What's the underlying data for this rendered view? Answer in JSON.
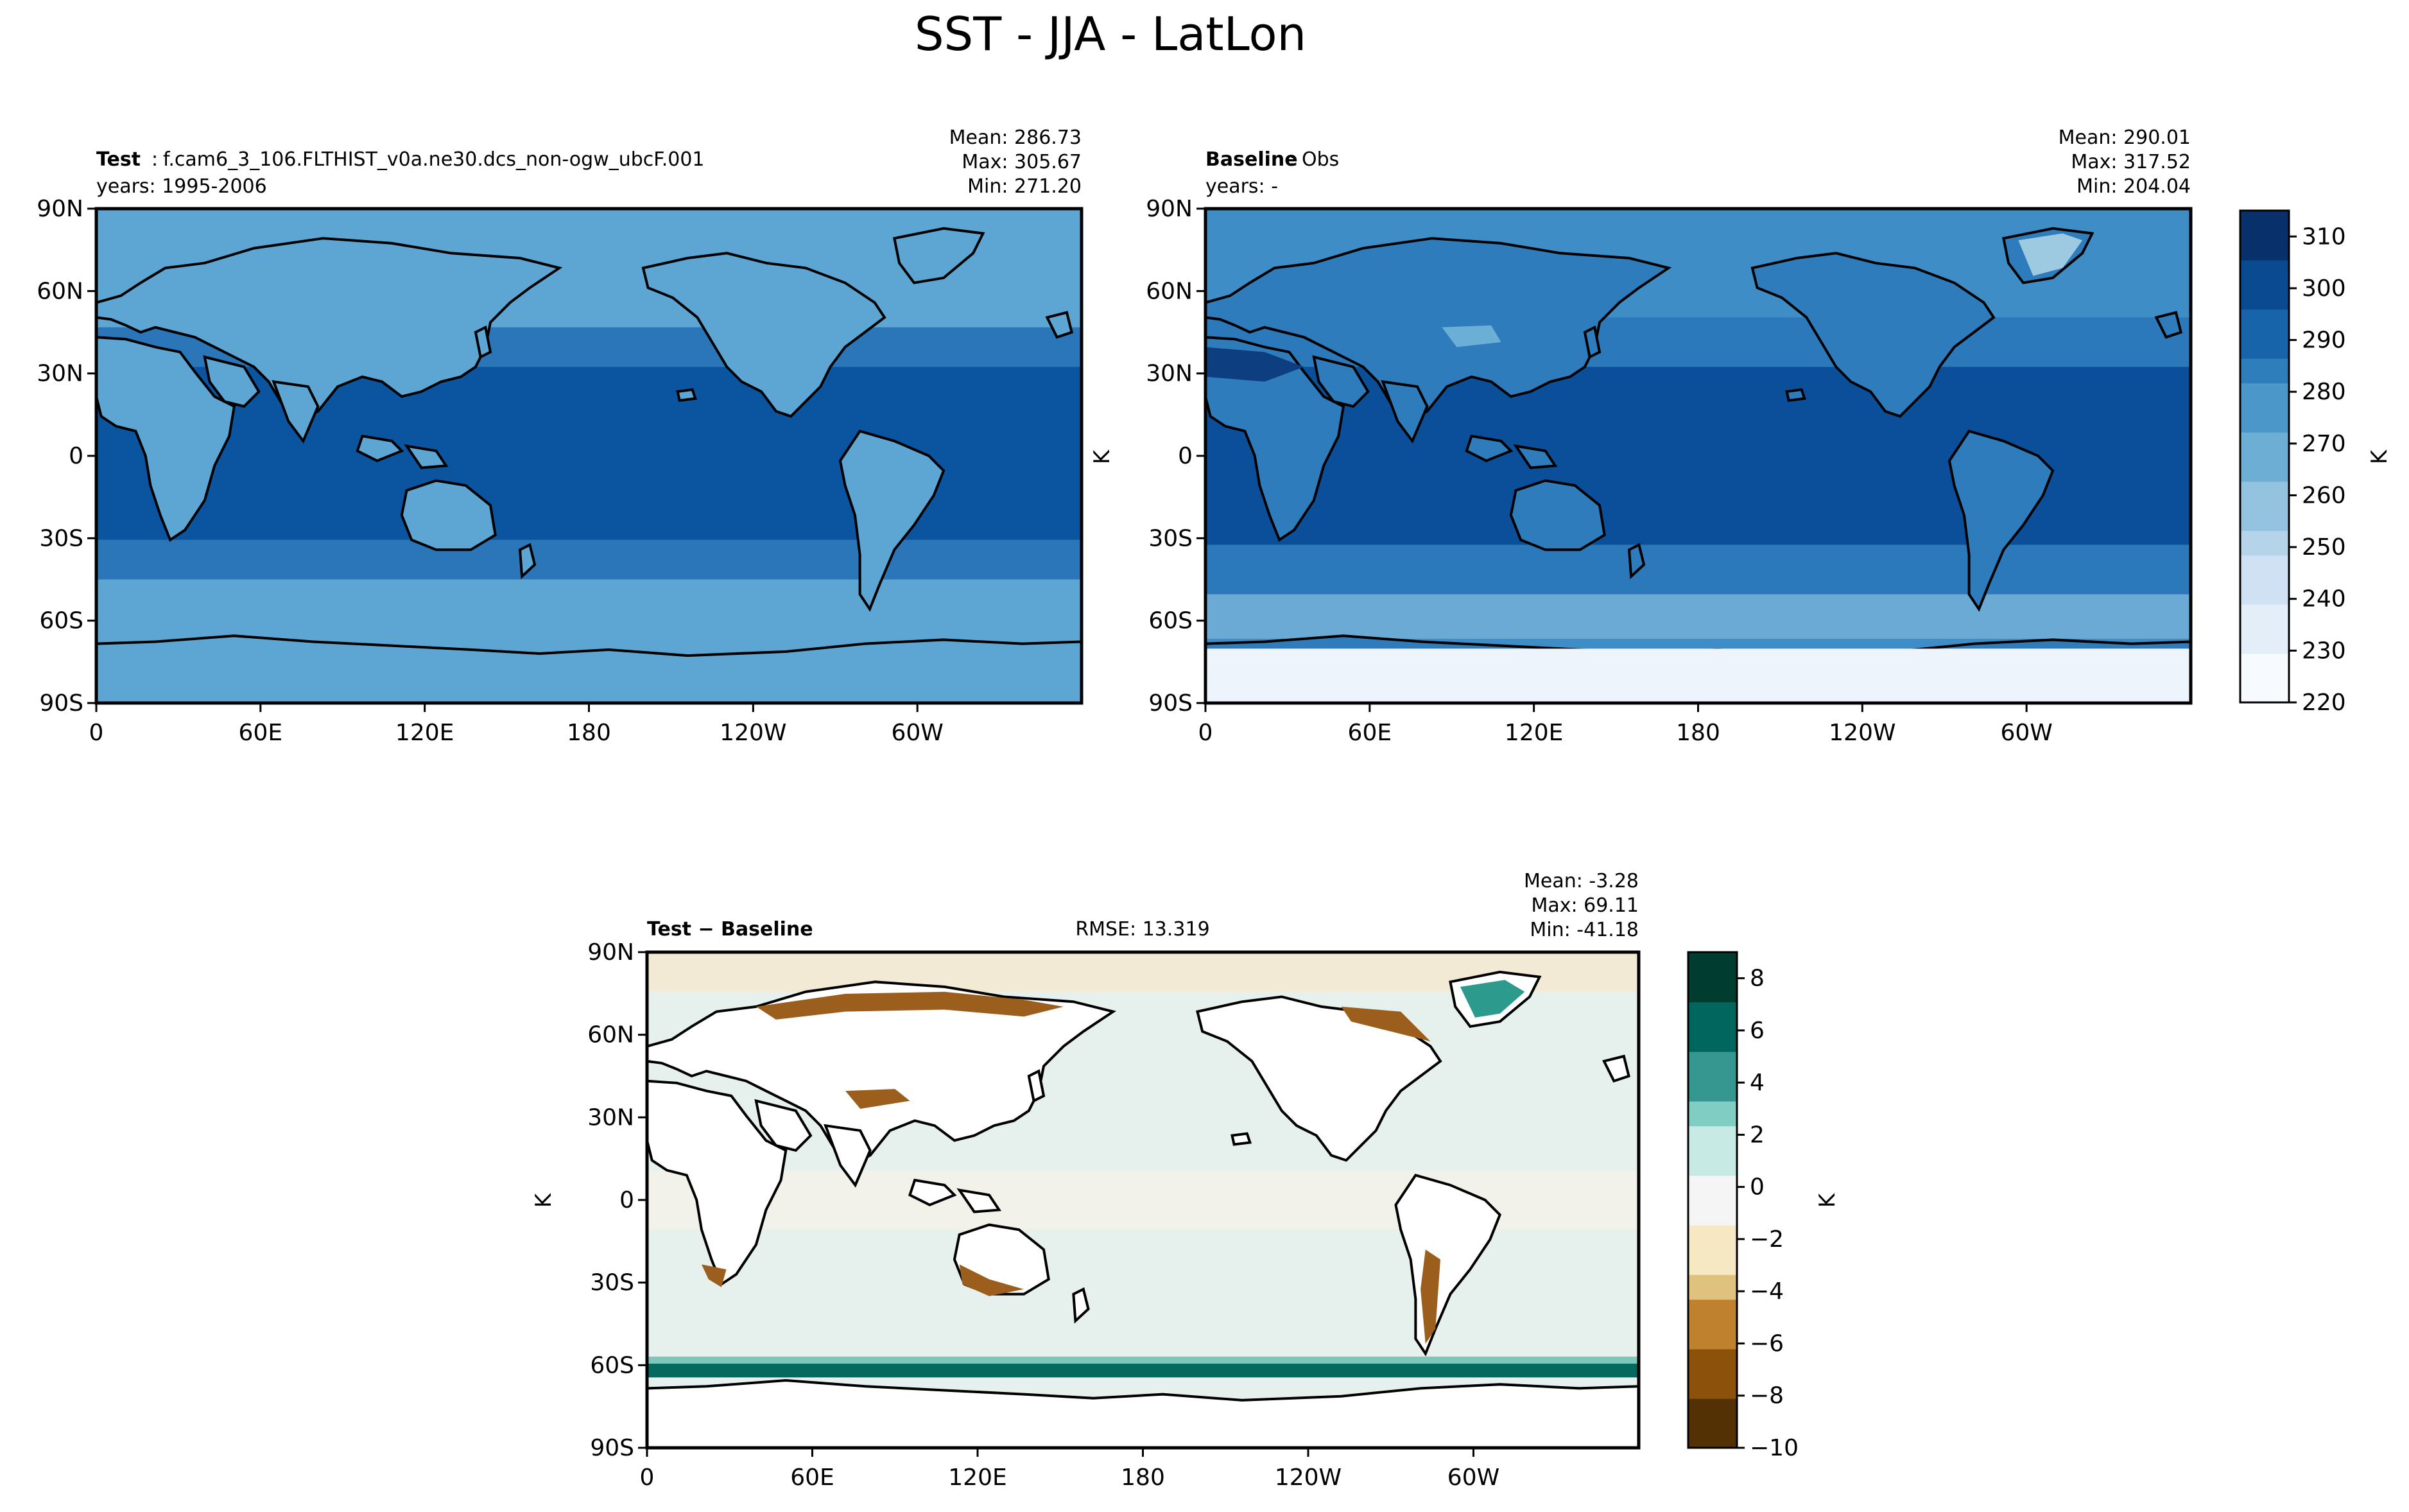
{
  "figure": {
    "title": "SST - JJA - LatLon"
  },
  "lat_ticks": [
    "90N",
    "60N",
    "30N",
    "0",
    "30S",
    "60S",
    "90S"
  ],
  "lon_ticks": [
    "0",
    "60E",
    "120E",
    "180",
    "120W",
    "60W"
  ],
  "panels": {
    "test": {
      "label_bold": "Test",
      "label_sep": ":",
      "label_value": "f.cam6_3_106.FLTHIST_v0a.ne30.dcs_non-ogw_ubcF.001",
      "years": "years: 1995-2006",
      "mean": "Mean: 286.73",
      "max": "Max: 305.67",
      "min": "Min: 271.20"
    },
    "baseline": {
      "label_bold": "Baseline",
      "label_sep": ":",
      "label_value": "Obs",
      "years": "years: -",
      "mean": "Mean: 290.01",
      "max": "Max: 317.52",
      "min": "Min: 204.04",
      "ylabel": "K"
    },
    "diff": {
      "label_bold": "Test − Baseline",
      "rmse": "RMSE: 13.319",
      "mean": "Mean: -3.28",
      "max": "Max: 69.11",
      "min": "Min: -41.18",
      "ylabel": "K"
    }
  },
  "colorbars": {
    "absolute": {
      "label": "K",
      "ticks": [
        "310",
        "300",
        "290",
        "280",
        "270",
        "260",
        "250",
        "240",
        "230",
        "220"
      ],
      "range": [
        220,
        315
      ],
      "colors": [
        "#f7fbff",
        "#e3eef9",
        "#cfe1f2",
        "#b5d4e9",
        "#93c3df",
        "#6daed5",
        "#4b97c9",
        "#2f7ebc",
        "#1864aa",
        "#0a4a90",
        "#08306b"
      ]
    },
    "difference": {
      "label": "K",
      "ticks": [
        "8",
        "6",
        "4",
        "2",
        "0",
        "−2",
        "−4",
        "−6",
        "−8",
        "−10"
      ],
      "range": [
        -10,
        9
      ],
      "colors": [
        "#543005",
        "#8c510a",
        "#bf812d",
        "#dfc27d",
        "#f6e8c3",
        "#f5f5f5",
        "#c7eae5",
        "#80cdc1",
        "#35978f",
        "#01665e",
        "#003c30"
      ]
    }
  },
  "map_colors": {
    "test_ocean_warm": "#0b54a0",
    "test_ocean_mid": "#2a76b9",
    "test_land": "#5da5d3",
    "base_ocean_warm": "#0b4f9a",
    "base_ocean_mid": "#2b78ba",
    "base_land": "#2f7cbd",
    "base_ice": "#eef4fb",
    "diff_ocean": "#e6f1ee",
    "diff_land": "#ffffff",
    "diff_arctic": "#f3ead5",
    "diff_south_band": "#05695f",
    "diff_coast_cold": "#9b5e1c"
  }
}
